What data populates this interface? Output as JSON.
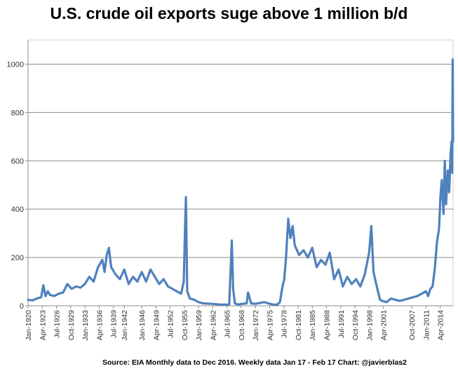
{
  "chart_data": {
    "type": "line",
    "title": "U.S. crude oil exports suge above 1 million b/d",
    "xlabel": "",
    "ylabel": "",
    "ylim": [
      0,
      1100
    ],
    "yticks": [
      0,
      200,
      400,
      600,
      800,
      1000
    ],
    "grid": true,
    "legend": "none",
    "color": "#4F81BD",
    "x_tick_labels": [
      "Jan-1920",
      "Apr-1923",
      "Jul-1926",
      "Oct-1929",
      "Jan-1933",
      "Apr-1936",
      "Jul-1939",
      "Jan-1942",
      "Jan-1946",
      "Apr-1949",
      "Jul-1952",
      "Oct-1955",
      "Jan-1959",
      "Apr-1962",
      "Jul-1965",
      "Oct-1968",
      "Jan-1972",
      "Apr-1975",
      "Jul-1978",
      "Oct-1981",
      "Jan-1985",
      "Apr-1988",
      "Jul-1991",
      "Oct-1994",
      "Jan-1998",
      "Apr-2001",
      "Oct-2007",
      "Jan-2011",
      "Apr-2014"
    ],
    "x_tick_years": [
      1920,
      1923.25,
      1926.5,
      1929.75,
      1933,
      1936.25,
      1939.5,
      1942,
      1946,
      1949.25,
      1952.5,
      1955.75,
      1959,
      1962.25,
      1965.5,
      1968.75,
      1972,
      1975.25,
      1978.5,
      1981.75,
      1985,
      1988.25,
      1991.5,
      1994.75,
      1998,
      2001.25,
      2007.75,
      2011,
      2014.25
    ],
    "x_range": [
      1920,
      2017.2
    ],
    "series": [
      {
        "x": [
          1920,
          1921,
          1922,
          1923,
          1923.5,
          1924,
          1924.5,
          1925,
          1926,
          1927,
          1928,
          1929,
          1930,
          1931,
          1932,
          1933,
          1934,
          1935,
          1936,
          1937,
          1937.5,
          1938,
          1938.5,
          1939,
          1940,
          1941,
          1942,
          1943,
          1944,
          1945,
          1946,
          1947,
          1948,
          1949,
          1950,
          1951,
          1952,
          1953,
          1954,
          1955,
          1955.6,
          1955.9,
          1956.1,
          1956.4,
          1957,
          1958,
          1959,
          1960,
          1962,
          1964,
          1966,
          1966.6,
          1966.9,
          1967.3,
          1968,
          1969,
          1970,
          1970.3,
          1971,
          1972,
          1974,
          1975,
          1976,
          1977,
          1977.6,
          1978,
          1978.3,
          1978.6,
          1979,
          1979.5,
          1980,
          1980.5,
          1981,
          1982,
          1983,
          1984,
          1985,
          1986,
          1987,
          1988,
          1989,
          1990,
          1991,
          1992,
          1993,
          1994,
          1995,
          1996,
          1997,
          1998,
          1998.5,
          1999,
          2000,
          2000.5,
          2001,
          2002,
          2003,
          2004,
          2005,
          2006,
          2007,
          2008,
          2009,
          2010,
          2011,
          2011.5,
          2012,
          2012.5,
          2013,
          2013.5,
          2014,
          2014.3,
          2014.6,
          2015,
          2015.3,
          2015.6,
          2016,
          2016.3,
          2016.6,
          2016.85,
          2017,
          2017.1,
          2017.2
        ],
        "y": [
          25,
          22,
          30,
          35,
          85,
          40,
          60,
          45,
          40,
          50,
          55,
          90,
          70,
          80,
          75,
          90,
          120,
          100,
          160,
          190,
          140,
          210,
          240,
          160,
          130,
          110,
          150,
          90,
          120,
          100,
          140,
          100,
          150,
          120,
          90,
          110,
          80,
          70,
          60,
          50,
          100,
          320,
          450,
          60,
          30,
          25,
          15,
          10,
          8,
          5,
          5,
          270,
          70,
          10,
          5,
          8,
          10,
          55,
          10,
          8,
          15,
          10,
          5,
          5,
          15,
          60,
          90,
          110,
          200,
          360,
          280,
          330,
          250,
          210,
          230,
          200,
          240,
          160,
          190,
          170,
          220,
          110,
          150,
          80,
          120,
          90,
          110,
          80,
          130,
          220,
          330,
          140,
          60,
          25,
          20,
          15,
          30,
          25,
          20,
          25,
          30,
          35,
          40,
          50,
          60,
          40,
          70,
          80,
          150,
          260,
          320,
          450,
          520,
          380,
          600,
          420,
          560,
          470,
          620,
          680,
          550,
          1020,
          680
        ]
      }
    ]
  },
  "footer": {
    "source_text": "Source: EIA    Monthly data to Dec 2016. Weekly data Jan  17 - Feb 17    Chart: @javierblas2"
  }
}
